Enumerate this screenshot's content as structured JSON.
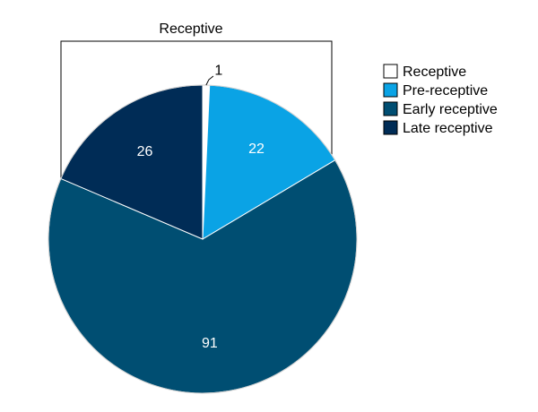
{
  "chart_data": {
    "type": "pie",
    "title": "Receptive",
    "slices": [
      {
        "label": "Receptive",
        "value": 1,
        "color": "#ffffff",
        "label_color": "#000000"
      },
      {
        "label": "Pre-receptive",
        "value": 22,
        "color": "#0aa3e5",
        "label_color": "#ffffff"
      },
      {
        "label": "Early receptive",
        "value": 91,
        "color": "#004e72",
        "label_color": "#ffffff"
      },
      {
        "label": "Late receptive",
        "value": 26,
        "color": "#002c56",
        "label_color": "#ffffff"
      }
    ],
    "legend_placement": "top-right"
  }
}
